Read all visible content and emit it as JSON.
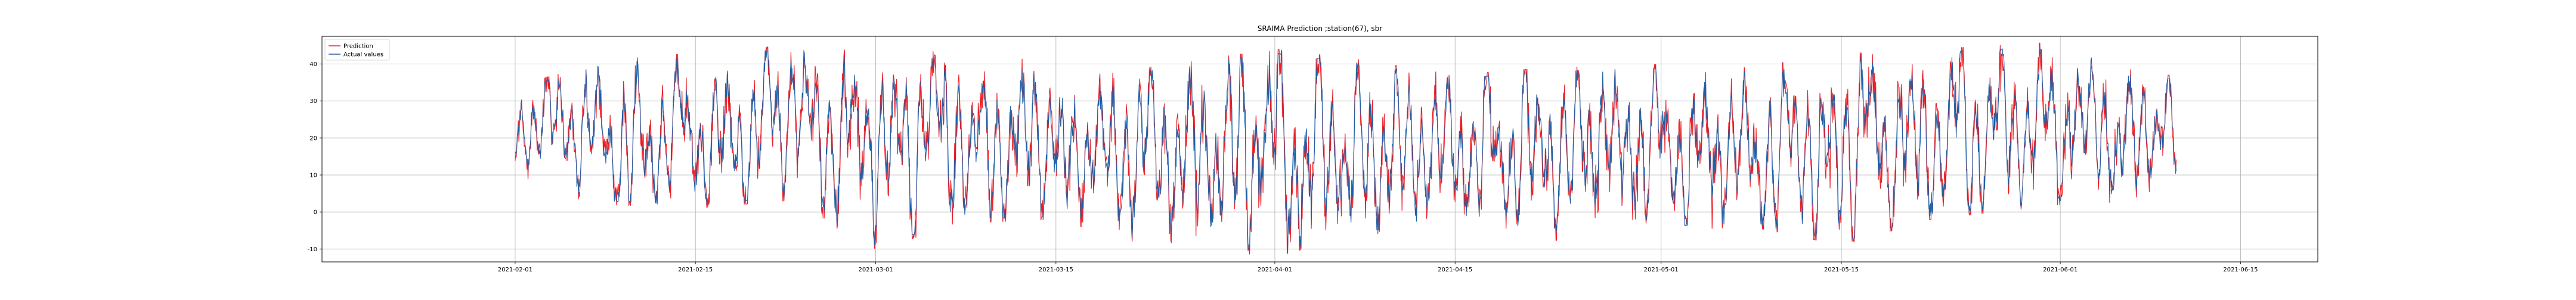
{
  "chart_data": {
    "type": "line",
    "title": "SRAIMA Prediction ;station(67), sbr",
    "xlabel": "",
    "ylabel": "",
    "x_range": [
      "2021-01-17",
      "2021-06-21"
    ],
    "data_range": [
      "2021-02-01",
      "2021-06-10"
    ],
    "ylim": [
      -13.5,
      47.5
    ],
    "grid": true,
    "legend_position": "top-left",
    "x_ticks": [
      {
        "date": "2021-02-01",
        "label": "2021-02-01"
      },
      {
        "date": "2021-02-15",
        "label": "2021-02-15"
      },
      {
        "date": "2021-03-01",
        "label": "2021-03-01"
      },
      {
        "date": "2021-03-15",
        "label": "2021-03-15"
      },
      {
        "date": "2021-04-01",
        "label": "2021-04-01"
      },
      {
        "date": "2021-04-15",
        "label": "2021-04-15"
      },
      {
        "date": "2021-05-01",
        "label": "2021-05-01"
      },
      {
        "date": "2021-05-15",
        "label": "2021-05-15"
      },
      {
        "date": "2021-06-01",
        "label": "2021-06-01"
      },
      {
        "date": "2021-06-15",
        "label": "2021-06-15"
      }
    ],
    "y_ticks": [
      -10,
      0,
      10,
      20,
      30,
      40
    ],
    "series": [
      {
        "name": "Prediction",
        "color": "#e8222a"
      },
      {
        "name": "Actual values",
        "color": "#1f5fa6"
      }
    ],
    "daily_summary": [
      {
        "date": "2021-02-01",
        "min": 8,
        "max": 33
      },
      {
        "date": "2021-02-08",
        "min": 3,
        "max": 40
      },
      {
        "date": "2021-02-15",
        "min": 2,
        "max": 42
      },
      {
        "date": "2021-02-22",
        "min": 4,
        "max": 44
      },
      {
        "date": "2021-03-01",
        "min": -9,
        "max": 43
      },
      {
        "date": "2021-03-08",
        "min": -2,
        "max": 42
      },
      {
        "date": "2021-03-15",
        "min": -1,
        "max": 40
      },
      {
        "date": "2021-03-22",
        "min": -8,
        "max": 38
      },
      {
        "date": "2021-04-01",
        "min": -11,
        "max": 43
      },
      {
        "date": "2021-04-08",
        "min": -5,
        "max": 40
      },
      {
        "date": "2021-04-15",
        "min": -4,
        "max": 36
      },
      {
        "date": "2021-04-22",
        "min": -7,
        "max": 38
      },
      {
        "date": "2021-05-01",
        "min": -4,
        "max": 39
      },
      {
        "date": "2021-05-08",
        "min": -3,
        "max": 38
      },
      {
        "date": "2021-05-15",
        "min": -8,
        "max": 42
      },
      {
        "date": "2021-05-22",
        "min": -1,
        "max": 43
      },
      {
        "date": "2021-06-01",
        "min": 3,
        "max": 45
      },
      {
        "date": "2021-06-08",
        "min": 4,
        "max": 36
      }
    ]
  }
}
